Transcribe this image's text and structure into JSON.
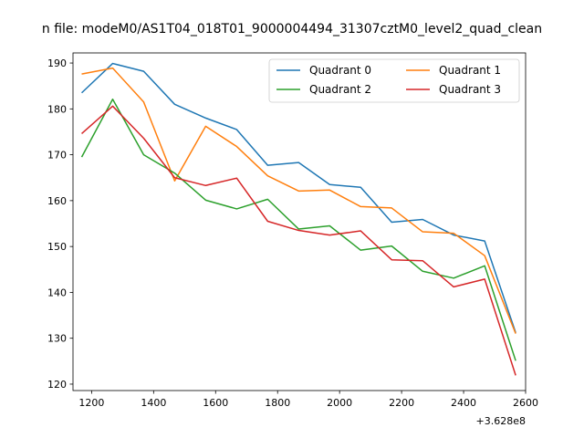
{
  "chart_data": {
    "type": "line",
    "title": "n file: modeM0/AS1T04_018T01_9000004494_31307cztM0_level2_quad_clean",
    "xlabel": "",
    "ylabel": "",
    "x_offset_label": "+3.628e8",
    "xlim": [
      1140,
      2600
    ],
    "ylim": [
      118.6,
      192.2
    ],
    "x_ticks": [
      1200,
      1400,
      1600,
      1800,
      2000,
      2200,
      2400,
      2600
    ],
    "y_ticks": [
      120,
      130,
      140,
      150,
      160,
      170,
      180,
      190
    ],
    "grid": false,
    "legend": {
      "placement": "top-right",
      "columns": 2
    },
    "x": [
      1168,
      1268,
      1368,
      1468,
      1568,
      1668,
      1768,
      1868,
      1968,
      2068,
      2168,
      2268,
      2368,
      2468,
      2568
    ],
    "series": [
      {
        "name": "Quadrant 0",
        "color": "#1f77b4",
        "values": [
          183.5,
          189.9,
          188.2,
          181.0,
          178.0,
          175.5,
          167.7,
          168.3,
          163.5,
          162.9,
          155.3,
          155.9,
          152.5,
          151.2,
          131.2
        ]
      },
      {
        "name": "Quadrant 1",
        "color": "#ff7f0e",
        "values": [
          187.6,
          188.9,
          181.5,
          164.3,
          176.2,
          171.8,
          165.4,
          162.1,
          162.3,
          158.7,
          158.4,
          153.2,
          152.9,
          148.0,
          131.0
        ]
      },
      {
        "name": "Quadrant 2",
        "color": "#2ca02c",
        "values": [
          169.5,
          182.1,
          170.0,
          166.0,
          160.1,
          158.2,
          160.3,
          153.8,
          154.5,
          149.2,
          150.1,
          144.6,
          143.1,
          145.8,
          125.1
        ]
      },
      {
        "name": "Quadrant 3",
        "color": "#d62728",
        "values": [
          174.6,
          180.6,
          173.6,
          165.0,
          163.3,
          164.9,
          155.5,
          153.5,
          152.5,
          153.4,
          147.1,
          146.9,
          141.2,
          142.9,
          121.9
        ]
      }
    ]
  }
}
